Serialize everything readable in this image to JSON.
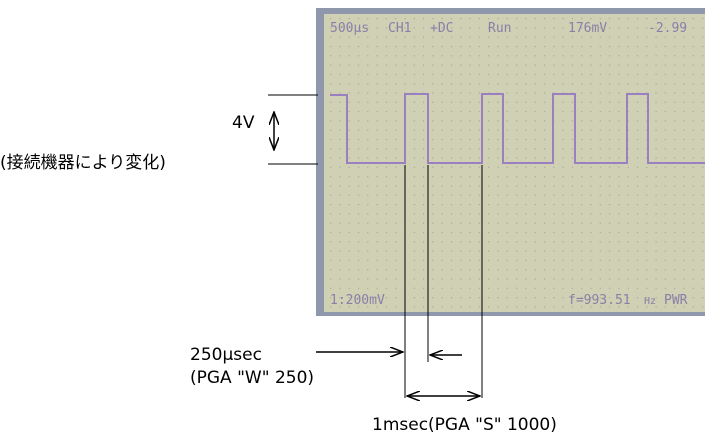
{
  "screen": {
    "header": [
      "500µs",
      "CH1",
      "+DC",
      "Run",
      "176mV",
      "-2.99"
    ],
    "scale": "1:200mV",
    "frequency": "f=993.51",
    "unit": "Hz",
    "power": "PWR"
  },
  "annotations": {
    "amplitude": "4V",
    "amplitude_note": "(接続機器により変化)",
    "pulse_width": "250μsec",
    "pulse_width_note": "(PGA \"W\" 250)",
    "period": "1msec(PGA \"S\" 1000)"
  }
}
